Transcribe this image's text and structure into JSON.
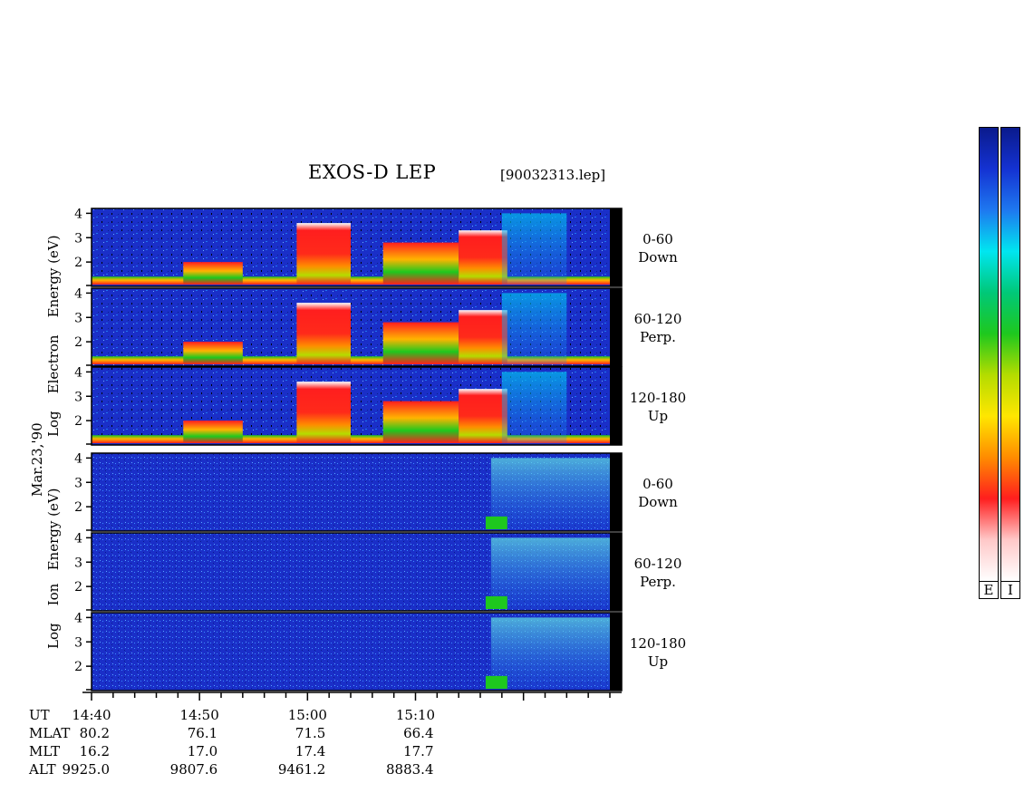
{
  "header": {
    "title": "EXOS-D LEP",
    "filename": "[90032313.lep]"
  },
  "y_axis": {
    "electron_label_lines": [
      "Log",
      "Electron",
      "Energy",
      "(eV)"
    ],
    "ion_label_lines": [
      "Log",
      "Ion",
      "Energy",
      "(eV)"
    ],
    "date_label": "Mar.23,'90",
    "ticks": [
      "4",
      "3",
      "2"
    ]
  },
  "panels": [
    {
      "id": "e-down",
      "species": "Electron",
      "angle": "0-60",
      "direction": "Down"
    },
    {
      "id": "e-perp",
      "species": "Electron",
      "angle": "60-120",
      "direction": "Perp."
    },
    {
      "id": "e-up",
      "species": "Electron",
      "angle": "120-180",
      "direction": "Up"
    },
    {
      "id": "i-down",
      "species": "Ion",
      "angle": "0-60",
      "direction": "Down"
    },
    {
      "id": "i-perp",
      "species": "Ion",
      "angle": "60-120",
      "direction": "Perp."
    },
    {
      "id": "i-up",
      "species": "Ion",
      "angle": "120-180",
      "direction": "Up"
    }
  ],
  "footer": {
    "row_labels": [
      "UT",
      "MLAT",
      "MLT",
      "ALT"
    ],
    "columns": [
      {
        "UT": "14:40",
        "MLAT": "80.2",
        "MLT": "16.2",
        "ALT": "9925.0"
      },
      {
        "UT": "14:50",
        "MLAT": "76.1",
        "MLT": "17.0",
        "ALT": "9807.6"
      },
      {
        "UT": "15:00",
        "MLAT": "71.5",
        "MLT": "17.4",
        "ALT": "9461.2"
      },
      {
        "UT": "15:10",
        "MLAT": "66.4",
        "MLT": "17.7",
        "ALT": "8883.4"
      }
    ]
  },
  "colorbar": {
    "labels": [
      "E",
      "I"
    ],
    "colors": [
      "#0a1a8c",
      "#1432d2",
      "#1e78f0",
      "#00e6f0",
      "#00c878",
      "#1ec81e",
      "#b4dc00",
      "#ffe600",
      "#ff8c00",
      "#ff1e1e",
      "#ffc8c8",
      "#ffffff"
    ]
  },
  "chart_data": {
    "type": "heatmap",
    "title": "EXOS-D LEP",
    "xlabel": "UT",
    "x_ticks": [
      "14:40",
      "14:50",
      "15:00",
      "15:10"
    ],
    "ylabel_electron": "Log Electron Energy (eV)",
    "ylabel_ion": "Log Ion Energy (eV)",
    "ylim": [
      1,
      4.2
    ],
    "y_ticks": [
      4,
      3,
      2
    ],
    "x_range_minutes": [
      0,
      48
    ],
    "electron_events": [
      {
        "t_start": 0,
        "t_end": 48,
        "max_log_energy": 1.4,
        "level": "green-red"
      },
      {
        "t_start": 8.5,
        "t_end": 14,
        "max_log_energy": 2.0,
        "level": "yellow-orange"
      },
      {
        "t_start": 19,
        "t_end": 24,
        "max_log_energy": 3.6,
        "level": "red-white"
      },
      {
        "t_start": 27,
        "t_end": 34,
        "max_log_energy": 2.8,
        "level": "red"
      },
      {
        "t_start": 34,
        "t_end": 38.5,
        "max_log_energy": 3.3,
        "level": "red-white"
      },
      {
        "t_start": 38,
        "t_end": 44,
        "max_log_energy": 4.0,
        "level": "cyan"
      }
    ],
    "ion_events": [
      {
        "t_start": 37,
        "t_end": 48,
        "max_log_energy": 4.0,
        "level": "cyan"
      },
      {
        "t_start": 36.5,
        "t_end": 38.5,
        "max_log_energy": 1.6,
        "level": "green"
      }
    ]
  }
}
